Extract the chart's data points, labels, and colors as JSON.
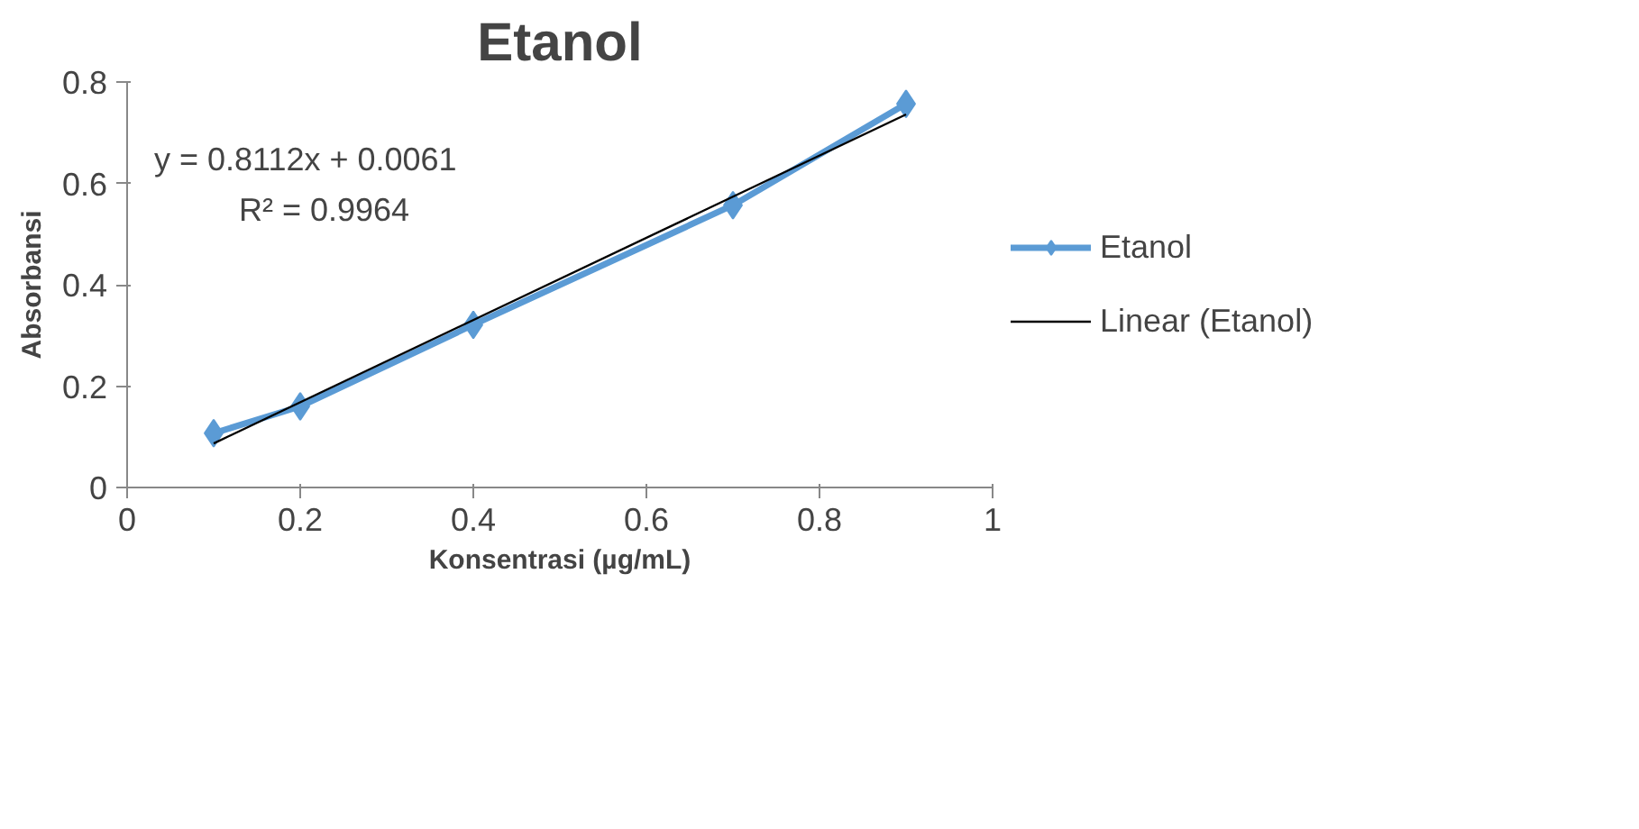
{
  "chart_data": {
    "type": "line",
    "title": "Etanol",
    "xlabel": "Konsentrasi (µg/mL)",
    "ylabel": "Absorbansi",
    "x": [
      0.1,
      0.2,
      0.4,
      0.7,
      0.9
    ],
    "series": [
      {
        "name": "Etanol",
        "color": "#5b9bd5",
        "values": [
          0.107,
          0.16,
          0.321,
          0.557,
          0.757
        ],
        "marker": "diamond"
      },
      {
        "name": "Linear (Etanol)",
        "type": "line",
        "color": "#000000",
        "x": [
          0.1,
          0.9
        ],
        "values": [
          0.087,
          0.736
        ],
        "marker": "none"
      }
    ],
    "xlim": [
      0,
      1
    ],
    "xticks": [
      0,
      0.2,
      0.4,
      0.6,
      0.8,
      1
    ],
    "ylim": [
      0,
      0.8
    ],
    "yticks": [
      0,
      0.2,
      0.4,
      0.6,
      0.8
    ],
    "annotations": [
      "y = 0.8112x + 0.0061",
      "R² = 0.9964"
    ],
    "legend": "right"
  }
}
